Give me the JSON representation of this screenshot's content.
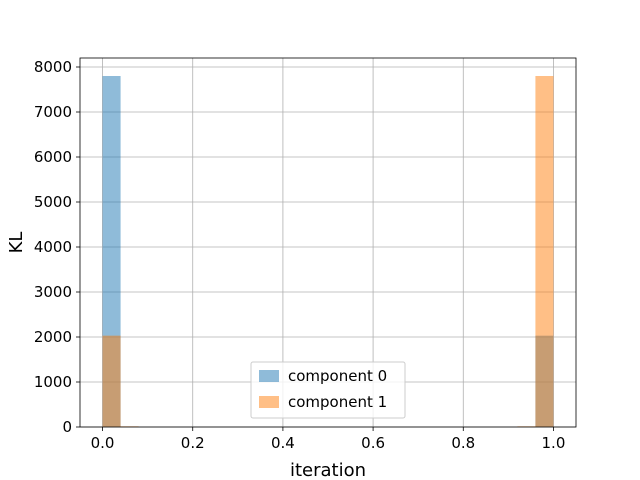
{
  "chart_data": {
    "type": "bar",
    "title": "",
    "xlabel": "iteration",
    "ylabel": "KL",
    "xlim": [
      -0.05,
      1.05
    ],
    "ylim": [
      0,
      8200
    ],
    "xticks": [
      0.0,
      0.2,
      0.4,
      0.6,
      0.8,
      1.0
    ],
    "xtick_labels": [
      "0.0",
      "0.2",
      "0.4",
      "0.6",
      "0.8",
      "1.0"
    ],
    "yticks": [
      0,
      1000,
      2000,
      3000,
      4000,
      5000,
      6000,
      7000,
      8000
    ],
    "ytick_labels": [
      "0",
      "1000",
      "2000",
      "3000",
      "4000",
      "5000",
      "6000",
      "7000",
      "8000"
    ],
    "grid": true,
    "legend_position": "lower-center",
    "bin_width": 0.04,
    "series": [
      {
        "name": "component 0",
        "color": "#1f77b4",
        "opacity": 0.5,
        "bins": [
          {
            "x0": 0.0,
            "x1": 0.04,
            "value": 7800
          },
          {
            "x0": 0.96,
            "x1": 1.0,
            "value": 2030
          }
        ]
      },
      {
        "name": "component 1",
        "color": "#ff7f0e",
        "opacity": 0.5,
        "bins": [
          {
            "x0": 0.0,
            "x1": 0.04,
            "value": 2030
          },
          {
            "x0": 0.04,
            "x1": 0.08,
            "value": 15
          },
          {
            "x0": 0.92,
            "x1": 0.96,
            "value": 15
          },
          {
            "x0": 0.96,
            "x1": 1.0,
            "value": 7800
          }
        ]
      }
    ]
  }
}
